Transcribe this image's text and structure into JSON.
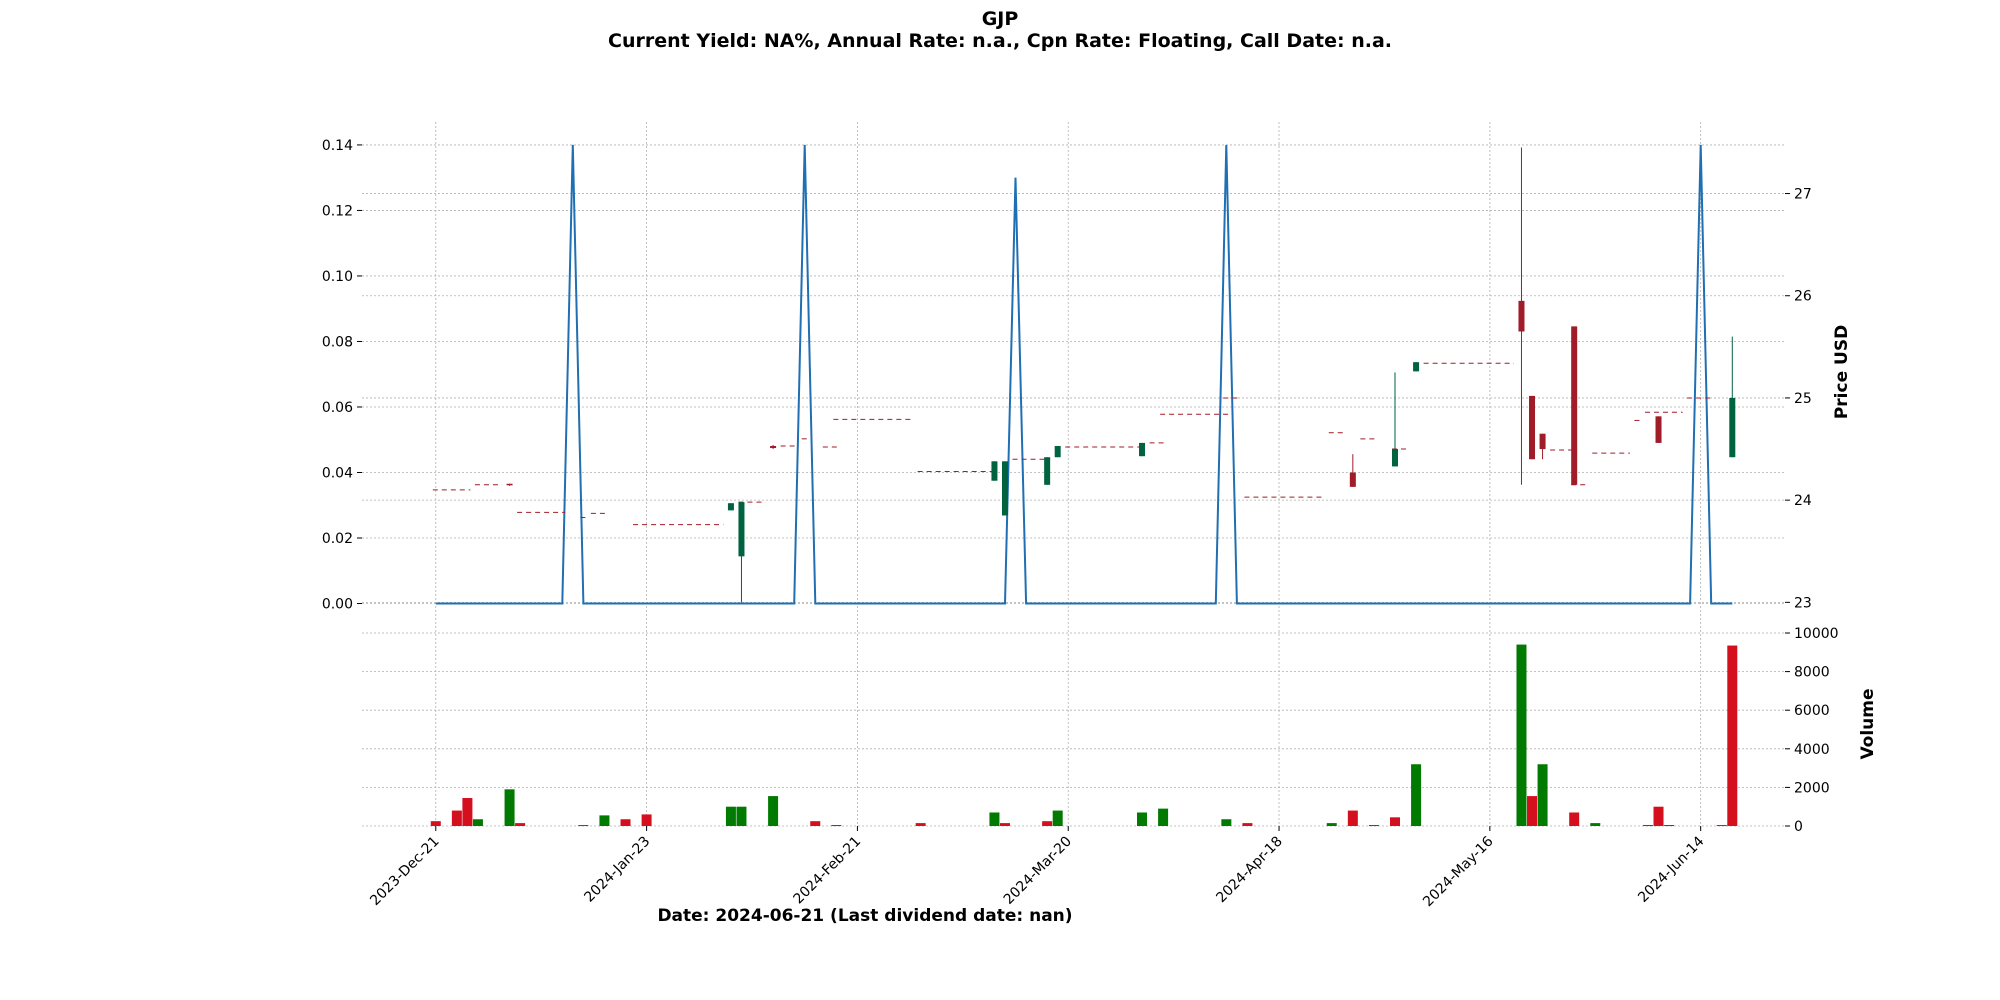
{
  "header": {
    "title": "GJP",
    "subtitle": "Current Yield: NA%, Annual Rate: n.a., Cpn Rate: Floating, Call Date: n.a."
  },
  "colors": {
    "up": "#006340",
    "down": "#a01c28",
    "vol_up": "#007a00",
    "vol_down": "#d40f1e",
    "yield_line": "#1f6fb2",
    "grid": "#b0b0b0"
  },
  "chart_data": {
    "type": "candlestick",
    "xlabel": "Date: 2024-06-21   (Last dividend date: nan)",
    "x_ticks": [
      "2023-Dec-21",
      "2024-Jan-23",
      "2024-Feb-21",
      "2024-Mar-20",
      "2024-Apr-18",
      "2024-May-16",
      "2024-Jun-14"
    ],
    "x_tick_index": [
      0,
      20,
      40,
      60,
      80,
      100,
      120
    ],
    "x_range": [
      -7,
      128
    ],
    "left_axis": {
      "ylim": [
        -0.009,
        0.147
      ],
      "ticks": [
        "0.00",
        "0.02",
        "0.04",
        "0.06",
        "0.08",
        "0.10",
        "0.12",
        "0.14"
      ]
    },
    "price_axis": {
      "label": "Price USD",
      "ylim": [
        22.7,
        27.7
      ],
      "ticks": [
        "23",
        "24",
        "25",
        "26",
        "27"
      ]
    },
    "volume_axis": {
      "label": "Volume",
      "ylim": [
        0,
        10000
      ],
      "ticks": [
        "0",
        "2000",
        "4000",
        "6000",
        "8000",
        "10000"
      ]
    },
    "yield_series": [
      [
        0,
        0
      ],
      [
        12,
        0
      ],
      [
        13,
        0.14
      ],
      [
        14,
        0
      ],
      [
        34,
        0
      ],
      [
        35,
        0.14
      ],
      [
        36,
        0
      ],
      [
        54,
        0
      ],
      [
        55,
        0.13
      ],
      [
        56,
        0
      ],
      [
        74,
        0
      ],
      [
        75,
        0.14
      ],
      [
        76,
        0
      ],
      [
        119,
        0
      ],
      [
        120,
        0.14
      ],
      [
        121,
        0
      ],
      [
        123,
        0
      ]
    ],
    "price_flat_segments": [
      [
        0,
        3,
        24.1
      ],
      [
        4,
        6,
        24.15
      ],
      [
        8,
        12,
        23.88
      ],
      [
        14,
        14,
        23.83
      ],
      [
        15,
        16,
        23.87
      ],
      [
        19,
        27,
        23.76
      ],
      [
        29,
        31,
        23.98
      ],
      [
        33,
        34,
        24.53
      ],
      [
        35,
        35,
        24.6
      ],
      [
        37,
        38,
        24.52
      ],
      [
        38,
        45,
        24.79
      ],
      [
        46,
        53,
        24.28
      ],
      [
        55,
        58,
        24.4
      ],
      [
        60,
        67,
        24.52
      ],
      [
        68,
        69,
        24.56
      ],
      [
        69,
        75,
        24.84
      ],
      [
        75,
        76,
        25.0
      ],
      [
        77,
        84,
        24.03
      ],
      [
        85,
        86,
        24.66
      ],
      [
        88,
        89,
        24.6
      ],
      [
        91,
        92,
        24.5
      ],
      [
        94,
        102,
        25.34
      ],
      [
        106,
        108,
        24.49
      ],
      [
        108,
        109,
        24.15
      ],
      [
        110,
        113,
        24.46
      ],
      [
        114,
        114,
        24.78
      ],
      [
        115,
        118,
        24.86
      ],
      [
        119,
        121,
        25.0
      ]
    ],
    "candles": [
      [
        7,
        24.16,
        24.15,
        24.16,
        24.14
      ],
      [
        28,
        23.9,
        23.97,
        23.97,
        23.9
      ],
      [
        29,
        23.45,
        23.98,
        23.98,
        23.0
      ],
      [
        32,
        24.53,
        24.51,
        24.54,
        24.5
      ],
      [
        53,
        24.19,
        24.38,
        24.38,
        24.19
      ],
      [
        54,
        23.85,
        24.38,
        24.38,
        23.85
      ],
      [
        58,
        24.15,
        24.42,
        24.42,
        24.15
      ],
      [
        59,
        24.42,
        24.53,
        24.53,
        24.42
      ],
      [
        67,
        24.43,
        24.56,
        24.56,
        24.43
      ],
      [
        87,
        24.27,
        24.13,
        24.45,
        24.13
      ],
      [
        91,
        24.33,
        24.5,
        25.25,
        24.33
      ],
      [
        93,
        25.26,
        25.35,
        25.35,
        25.26
      ],
      [
        103,
        25.95,
        25.65,
        27.45,
        24.15
      ],
      [
        104,
        25.02,
        24.4,
        25.02,
        24.4
      ],
      [
        105,
        24.65,
        24.5,
        24.65,
        24.4
      ],
      [
        108,
        25.7,
        24.15,
        25.7,
        24.15
      ],
      [
        116,
        24.82,
        24.56,
        24.82,
        24.56
      ],
      [
        123,
        24.42,
        25.0,
        25.6,
        24.42
      ]
    ],
    "volume_bars": [
      [
        0,
        250,
        "down"
      ],
      [
        2,
        800,
        "down"
      ],
      [
        3,
        1450,
        "down"
      ],
      [
        4,
        350,
        "up"
      ],
      [
        7,
        1900,
        "up"
      ],
      [
        8,
        150,
        "down"
      ],
      [
        14,
        50,
        "down"
      ],
      [
        16,
        550,
        "up"
      ],
      [
        18,
        350,
        "down"
      ],
      [
        20,
        600,
        "down"
      ],
      [
        28,
        1000,
        "up"
      ],
      [
        29,
        1000,
        "up"
      ],
      [
        32,
        1550,
        "up"
      ],
      [
        36,
        250,
        "down"
      ],
      [
        38,
        50,
        "up"
      ],
      [
        46,
        150,
        "down"
      ],
      [
        53,
        700,
        "up"
      ],
      [
        54,
        150,
        "down"
      ],
      [
        58,
        250,
        "down"
      ],
      [
        59,
        800,
        "up"
      ],
      [
        67,
        700,
        "up"
      ],
      [
        69,
        900,
        "up"
      ],
      [
        75,
        350,
        "up"
      ],
      [
        77,
        150,
        "down"
      ],
      [
        85,
        150,
        "up"
      ],
      [
        87,
        800,
        "down"
      ],
      [
        89,
        50,
        "up"
      ],
      [
        91,
        450,
        "down"
      ],
      [
        93,
        3200,
        "up"
      ],
      [
        103,
        9400,
        "up"
      ],
      [
        104,
        1550,
        "down"
      ],
      [
        105,
        3200,
        "up"
      ],
      [
        108,
        700,
        "down"
      ],
      [
        110,
        150,
        "up"
      ],
      [
        115,
        50,
        "up"
      ],
      [
        116,
        1000,
        "down"
      ],
      [
        117,
        50,
        "up"
      ],
      [
        122,
        50,
        "down"
      ],
      [
        123,
        9350,
        "down"
      ]
    ]
  }
}
